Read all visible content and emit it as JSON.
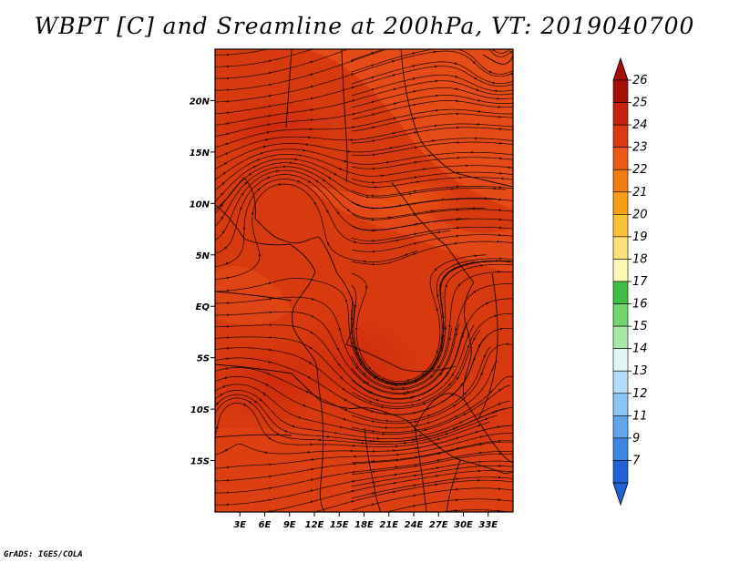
{
  "title": "WBPT [C] and Sreamline at 200hPa, VT: 2019040700",
  "credit": "GrADS: IGES/COLA",
  "map": {
    "lon_range": [
      0,
      36
    ],
    "lat_range": [
      -20,
      25
    ],
    "background_color": "#d83a0f",
    "x_ticks": [
      "3E",
      "6E",
      "9E",
      "12E",
      "15E",
      "18E",
      "21E",
      "24E",
      "27E",
      "30E",
      "33E"
    ],
    "x_tick_values": [
      3,
      6,
      9,
      12,
      15,
      18,
      21,
      24,
      27,
      30,
      33
    ],
    "y_ticks": [
      "20N",
      "15N",
      "10N",
      "5N",
      "EQ",
      "5S",
      "10S",
      "15S"
    ],
    "y_tick_values": [
      20,
      15,
      10,
      5,
      0,
      -5,
      -10,
      -15
    ]
  },
  "colorbar": {
    "labels": [
      "26",
      "25",
      "24",
      "23",
      "22",
      "21",
      "20",
      "19",
      "18",
      "17",
      "16",
      "15",
      "14",
      "13",
      "12",
      "11",
      "9",
      "7"
    ],
    "colors": [
      "#a50f08",
      "#c8220c",
      "#dd3a10",
      "#ee5a14",
      "#f47a12",
      "#fa9c14",
      "#fcbf36",
      "#fde079",
      "#fef7b3",
      "#3fbf3f",
      "#6ed66e",
      "#a7e8a7",
      "#e2f6f6",
      "#b4dcf8",
      "#8cc4f4",
      "#5ea6ee",
      "#3b86e6",
      "#2063d8"
    ],
    "top_arrow_color": "#a50f08",
    "bottom_arrow_color": "#2063d8"
  },
  "legend_icons": {
    "streamline": "streamline-arrow"
  }
}
